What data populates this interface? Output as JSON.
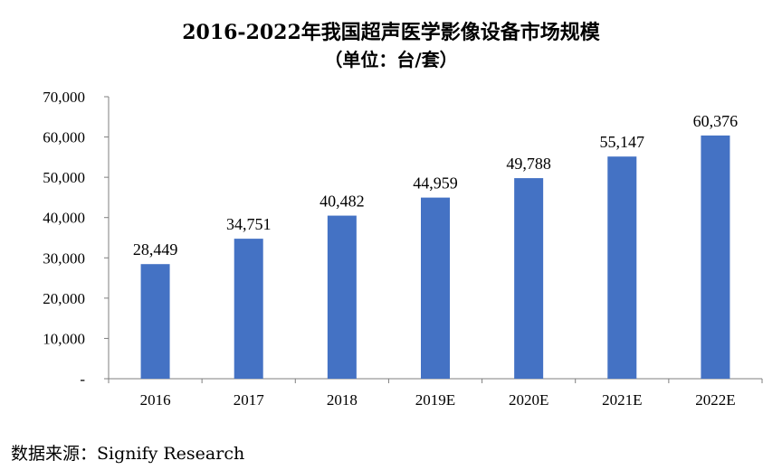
{
  "chart_data": {
    "type": "bar",
    "title": "2016-2022年我国超声医学影像设备市场规模",
    "subtitle": "（单位：台/套）",
    "categories": [
      "2016",
      "2017",
      "2018",
      "2019E",
      "2020E",
      "2021E",
      "2022E"
    ],
    "values": [
      28449,
      34751,
      40482,
      44959,
      49788,
      55147,
      60376
    ],
    "value_labels": [
      "28,449",
      "34,751",
      "40,482",
      "44,959",
      "49,788",
      "55,147",
      "60,376"
    ],
    "y_ticks": [
      "-",
      "10,000",
      "20,000",
      "30,000",
      "40,000",
      "50,000",
      "60,000",
      "70,000"
    ],
    "ylim": [
      0,
      70000
    ],
    "bar_color": "#4472C4",
    "grid": false,
    "legend": "none"
  },
  "source": "数据来源：Signify Research"
}
